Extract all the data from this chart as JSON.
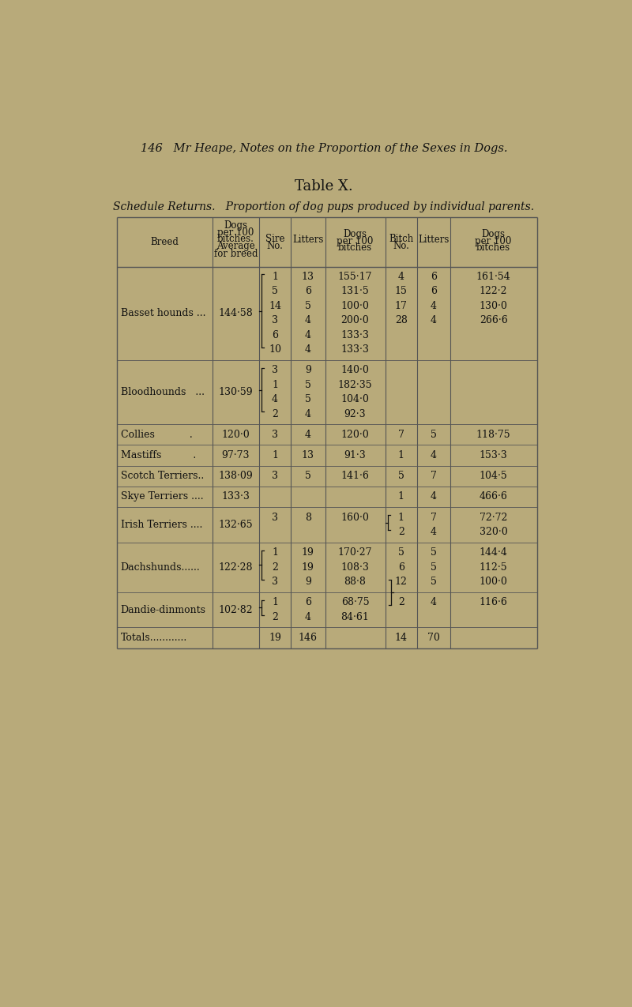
{
  "page_header": "146   Mr Heape, Notes on the Proportion of the Sexes in Dogs.",
  "table_title": "Table X.",
  "table_subtitle": "Schedule Returns.   Proportion of dog pups produced by individual parents.",
  "bg_color": "#b8aa7a",
  "text_color": "#111111",
  "rows": [
    {
      "breed": "Basset hounds ...",
      "avg": "144·58",
      "n_sire": 6,
      "bracket_sire": true,
      "sire_rows": [
        [
          "1",
          "13",
          "155·17"
        ],
        [
          "5",
          "6",
          "131·5"
        ],
        [
          "14",
          "5",
          "100·0"
        ],
        [
          "3",
          "4",
          "200·0"
        ],
        [
          "6",
          "4",
          "133·3"
        ],
        [
          "10",
          "4",
          "133·3"
        ]
      ],
      "n_bitch": 4,
      "bracket_bitch": false,
      "bitch_rows": [
        [
          "4",
          "6",
          "161·54"
        ],
        [
          "15",
          "6",
          "122·2"
        ],
        [
          "17",
          "4",
          "130·0"
        ],
        [
          "28",
          "4",
          "266·6"
        ]
      ]
    },
    {
      "breed": "Bloodhounds   ...",
      "avg": "130·59",
      "n_sire": 4,
      "bracket_sire": true,
      "sire_rows": [
        [
          "3",
          "9",
          "140·0"
        ],
        [
          "1",
          "5",
          "182·35"
        ],
        [
          "4",
          "5",
          "104·0"
        ],
        [
          "2",
          "4",
          "92·3"
        ]
      ],
      "n_bitch": 0,
      "bracket_bitch": false,
      "bitch_rows": []
    },
    {
      "breed": "Collies           .",
      "avg": "120·0",
      "n_sire": 1,
      "bracket_sire": false,
      "sire_rows": [
        [
          "3",
          "4",
          "120·0"
        ]
      ],
      "n_bitch": 1,
      "bracket_bitch": false,
      "bitch_rows": [
        [
          "7",
          "5",
          "118·75"
        ]
      ]
    },
    {
      "breed": "Mastiffs          .",
      "avg": "97·73",
      "n_sire": 1,
      "bracket_sire": false,
      "sire_rows": [
        [
          "1",
          "13",
          "91·3"
        ]
      ],
      "n_bitch": 1,
      "bracket_bitch": false,
      "bitch_rows": [
        [
          "1",
          "4",
          "153·3"
        ]
      ]
    },
    {
      "breed": "Scotch Terriers..",
      "avg": "138·09",
      "n_sire": 1,
      "bracket_sire": false,
      "sire_rows": [
        [
          "3",
          "5",
          "141·6"
        ]
      ],
      "n_bitch": 1,
      "bracket_bitch": false,
      "bitch_rows": [
        [
          "5",
          "7",
          "104·5"
        ]
      ]
    },
    {
      "breed": "Skye Terriers ....",
      "avg": "133·3",
      "n_sire": 0,
      "bracket_sire": false,
      "sire_rows": [],
      "n_bitch": 1,
      "bracket_bitch": false,
      "bitch_rows": [
        [
          "1",
          "4",
          "466·6"
        ]
      ]
    },
    {
      "breed": "Irish Terriers ....",
      "avg": "132·65",
      "n_sire": 1,
      "bracket_sire": false,
      "sire_rows": [
        [
          "3",
          "8",
          "160·0"
        ]
      ],
      "n_bitch": 2,
      "bracket_bitch": true,
      "bitch_bracket_open": true,
      "bitch_rows": [
        [
          "1",
          "7",
          "72·72"
        ],
        [
          "2",
          "4",
          "320·0"
        ]
      ]
    },
    {
      "breed": "Dachshunds......",
      "avg": "122·28",
      "n_sire": 3,
      "bracket_sire": true,
      "sire_rows": [
        [
          "1",
          "19",
          "170·27"
        ],
        [
          "2",
          "19",
          "108·3"
        ],
        [
          "3",
          "9",
          "88·8"
        ]
      ],
      "n_bitch": 3,
      "bracket_bitch": false,
      "bitch_rows": [
        [
          "5",
          "5",
          "144·4"
        ],
        [
          "6",
          "5",
          "112·5"
        ],
        [
          "12",
          "5",
          "100·0"
        ]
      ]
    },
    {
      "breed": "Dandie-dinmonts",
      "avg": "102·82",
      "n_sire": 2,
      "bracket_sire": true,
      "sire_rows": [
        [
          "1",
          "6",
          "68·75"
        ],
        [
          "2",
          "4",
          "84·61"
        ]
      ],
      "n_bitch": 1,
      "bracket_bitch": true,
      "bitch_bracket_open": false,
      "bitch_rows": [
        [
          "2",
          "4",
          "116·6"
        ]
      ]
    },
    {
      "breed": "Totals............",
      "avg": "",
      "n_sire": 1,
      "bracket_sire": false,
      "sire_rows": [
        [
          "19",
          "146",
          ""
        ]
      ],
      "n_bitch": 1,
      "bracket_bitch": false,
      "bitch_rows": [
        [
          "14",
          "70",
          ""
        ]
      ]
    }
  ]
}
